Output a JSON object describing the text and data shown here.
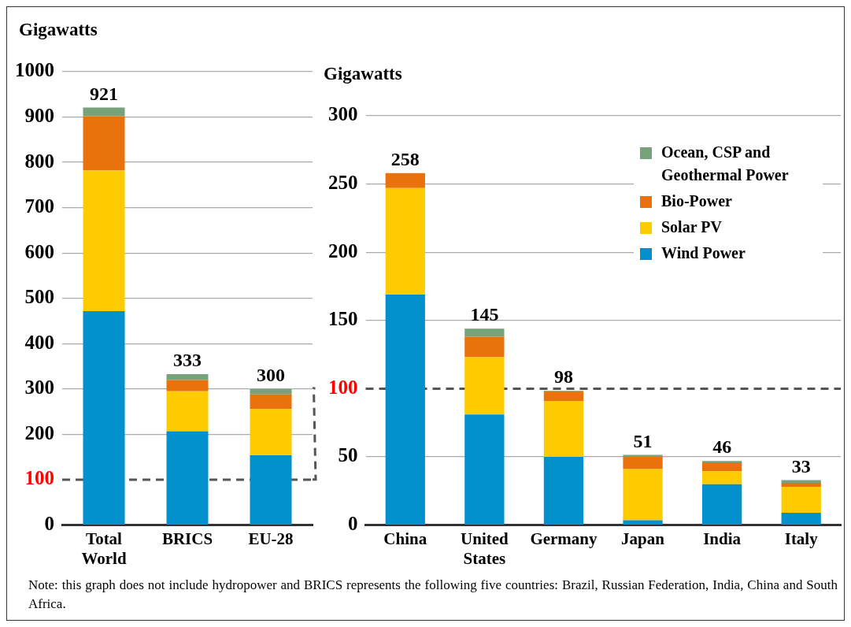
{
  "chart_data": [
    {
      "type": "bar",
      "ylabel": "Gigawatts",
      "categories": [
        "Total World",
        "BRICS",
        "EU-28"
      ],
      "stacked": true,
      "grid": "y",
      "legend": false,
      "series": [
        {
          "color": "#0391cd",
          "values": [
            472,
            207,
            154
          ]
        },
        {
          "color": "#fecb00",
          "values": [
            310,
            88,
            102
          ]
        },
        {
          "color": "#e9720c",
          "values": [
            120,
            25,
            32
          ]
        },
        {
          "color": "#77a37a",
          "values": [
            19,
            13,
            12
          ]
        }
      ],
      "totals": [
        "921",
        "333",
        "300"
      ],
      "ylim": [
        0,
        1000
      ],
      "yticks": [
        0,
        200,
        300,
        400,
        500,
        600,
        700,
        800,
        900,
        1000
      ],
      "ref_lines": [
        {
          "axis": "y",
          "value": 100,
          "label": "100",
          "color": "#555555",
          "line_style": "dashed"
        }
      ]
    },
    {
      "type": "bar",
      "ylabel": "Gigawatts",
      "categories": [
        "China",
        "United States",
        "Germany",
        "Japan",
        "India",
        "Italy"
      ],
      "stacked": true,
      "grid": "y",
      "legend": "top right",
      "series": [
        {
          "name": "Wind Power",
          "color": "#0391cd",
          "values": [
            169,
            81,
            50,
            3.5,
            30,
            9
          ]
        },
        {
          "name": "Solar PV",
          "color": "#fecb00",
          "values": [
            78,
            42,
            41,
            37.5,
            9.5,
            19
          ]
        },
        {
          "name": "Bio-Power",
          "color": "#e9720c",
          "values": [
            11,
            15,
            7,
            9,
            6.5,
            3
          ]
        },
        {
          "name": "Ocean, CSP and Geothermal Power",
          "color": "#77a37a",
          "values": [
            0,
            6,
            0.5,
            1.5,
            1,
            2
          ]
        }
      ],
      "totals": [
        "258",
        "145",
        "98",
        "51",
        "46",
        "33"
      ],
      "ylim": [
        0,
        300
      ],
      "yticks": [
        0,
        50,
        150,
        200,
        250,
        300
      ],
      "ref_lines": [
        {
          "axis": "y",
          "value": 100,
          "label": "100",
          "color": "#555555",
          "line_style": "dashed"
        }
      ],
      "annotations": [
        "Note: this graph does not include hydropower and BRICS represents the following five countries: Brazil, Russian Federation, India, China and South Africa."
      ]
    }
  ]
}
